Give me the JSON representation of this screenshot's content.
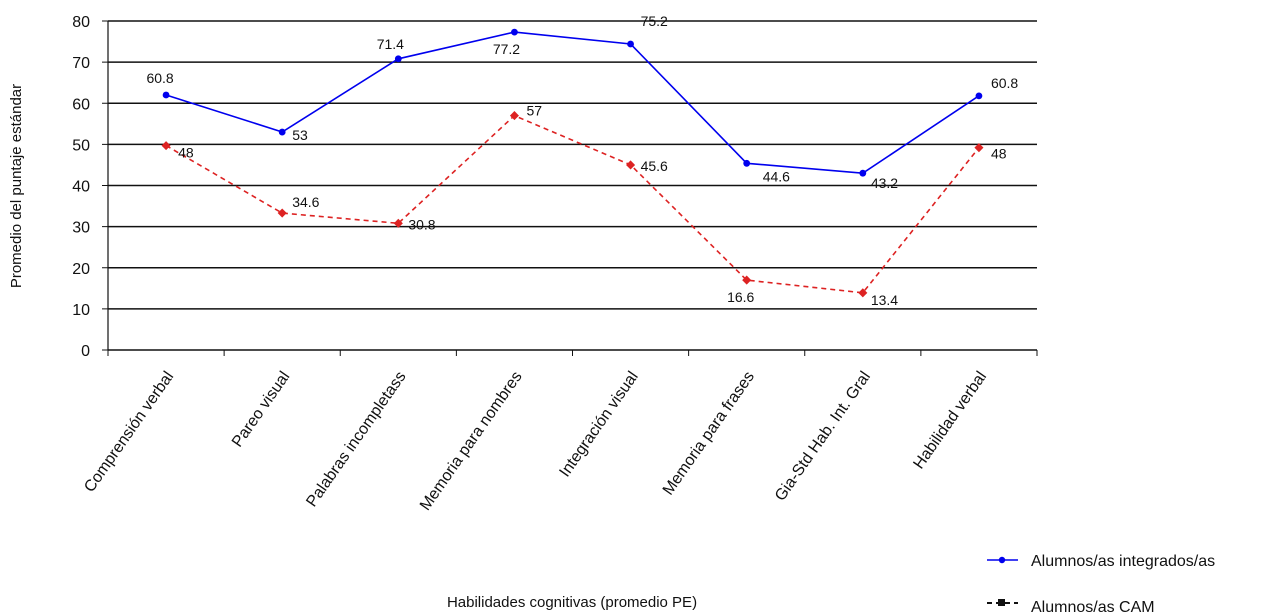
{
  "chart_data": {
    "type": "line",
    "title": "",
    "xlabel": "Habilidades cognitivas (promedio PE)",
    "ylabel": "Promedio del puntaje estándar",
    "ylim": [
      0,
      80
    ],
    "yticks": [
      0,
      10,
      20,
      30,
      40,
      50,
      60,
      70,
      80
    ],
    "grid": true,
    "legend_position": "bottom-right",
    "categories": [
      "Comprensión verbal",
      "Pareo visual",
      "Palabras incompletass",
      "Memoria para nombres",
      "Integración visual",
      "Memoria para frases",
      "Gia-Std Hab. Int. Gral",
      "Habilidad verbal"
    ],
    "series": [
      {
        "name": "Alumnos/as integrados/as",
        "values": [
          60.8,
          53,
          71.4,
          77.2,
          75.2,
          44.6,
          43.2,
          60.8
        ],
        "plotted": [
          62,
          53,
          70.8,
          77.3,
          74.4,
          45.4,
          43,
          61.8
        ],
        "color": "#0000ee",
        "line_style": "solid",
        "marker": "circle"
      },
      {
        "name": "Alumnos/as CAM",
        "values": [
          48,
          34.6,
          30.8,
          57,
          45.6,
          16.6,
          13.4,
          48
        ],
        "plotted": [
          49.7,
          33.3,
          30.8,
          57,
          45,
          17,
          13.9,
          49.2
        ],
        "color": "#dd2222",
        "line_style": "dashed",
        "marker": "square"
      }
    ]
  }
}
